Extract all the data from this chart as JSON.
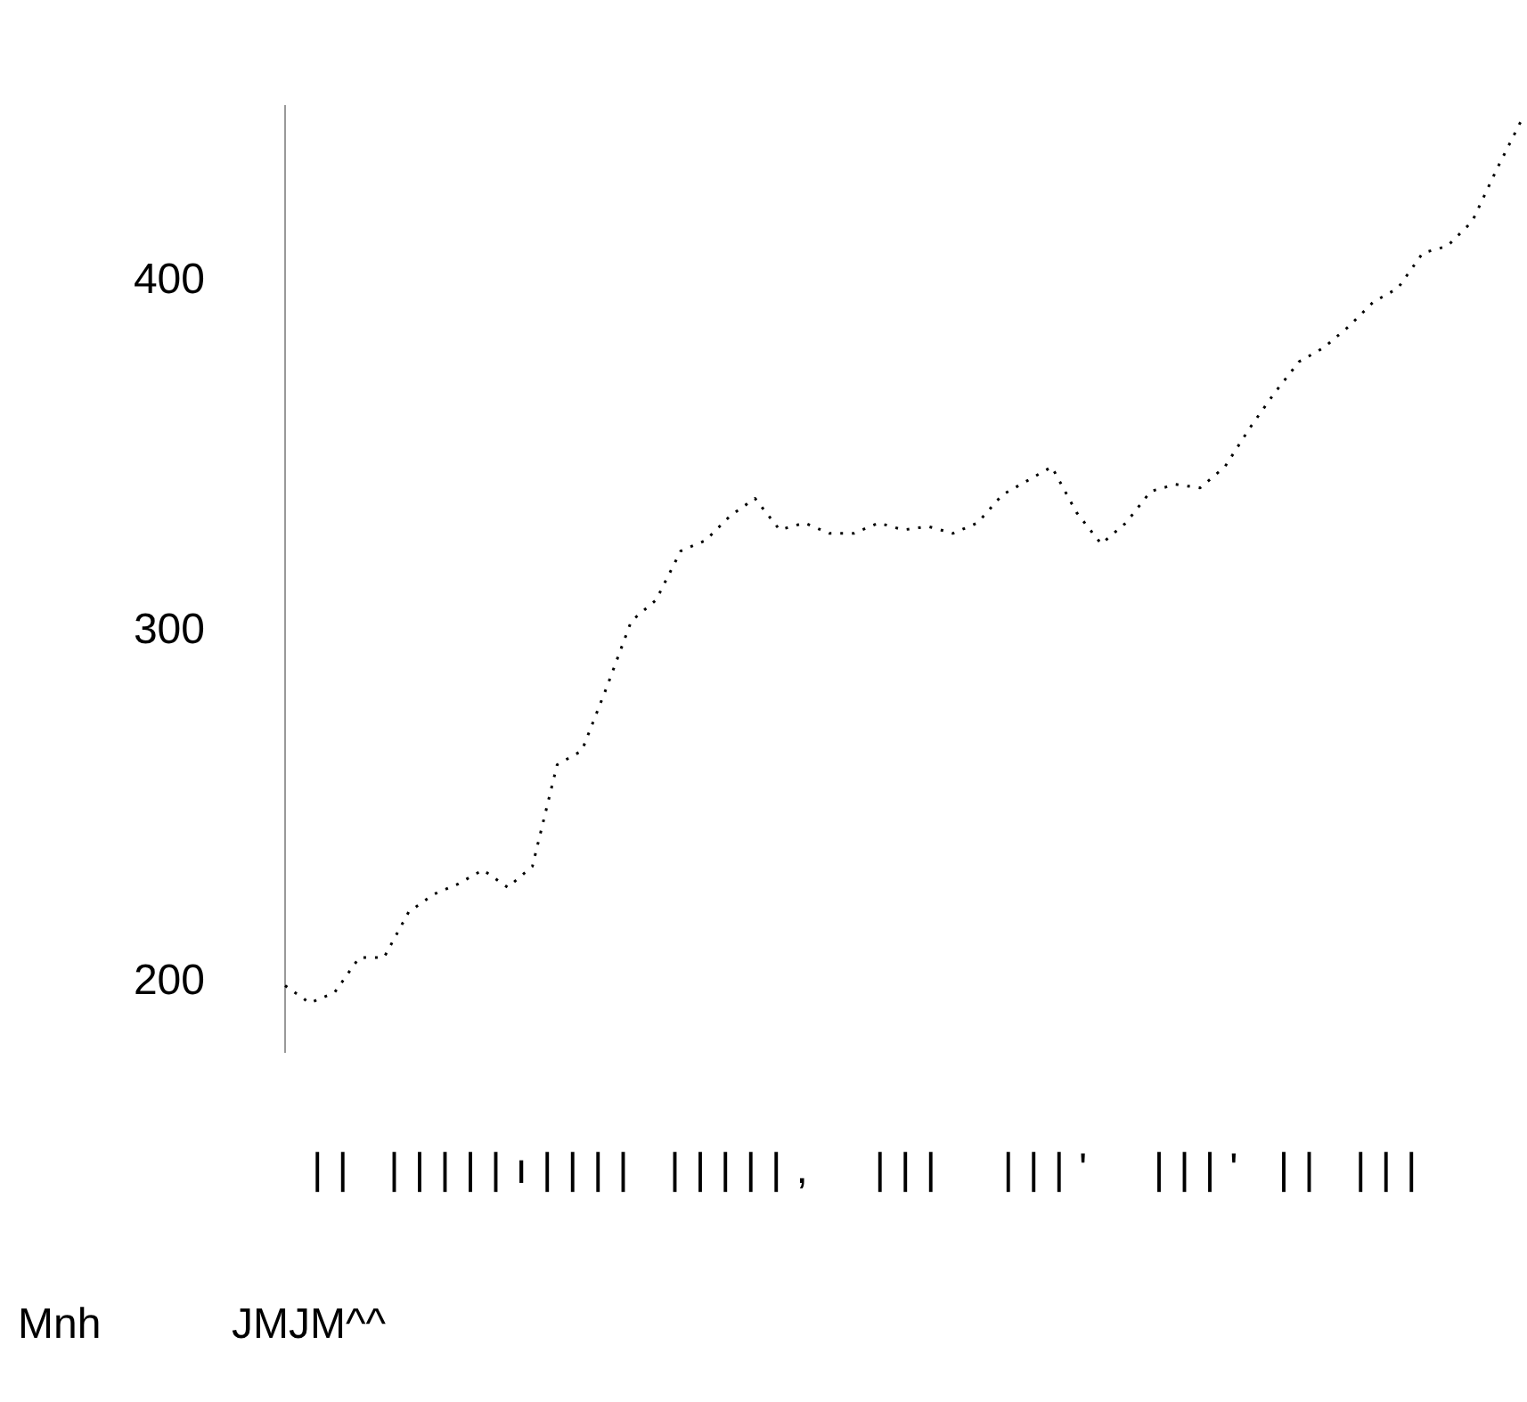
{
  "chart_data": {
    "type": "line",
    "line_style": "dotted",
    "marker": "none",
    "grid": false,
    "legend": false,
    "tick_labels": "y",
    "categories": [
      null,
      null,
      null,
      null,
      null,
      null,
      null,
      null,
      null,
      null,
      null,
      null,
      null,
      null,
      null,
      null,
      null,
      null,
      null,
      null,
      null,
      null,
      null,
      null,
      null,
      null,
      null,
      null,
      null,
      null,
      null,
      null,
      null,
      null,
      null,
      null,
      null,
      null,
      null,
      null,
      null,
      null,
      null,
      null,
      null,
      null,
      null,
      null,
      null,
      null,
      null
    ],
    "series": [
      {
        "color": "#000000",
        "values": [
          199,
          194,
          197,
          207,
          207,
          220,
          225,
          228,
          232,
          227,
          233,
          262,
          266,
          284,
          303,
          309,
          323,
          326,
          333,
          338,
          329,
          331,
          328,
          328,
          331,
          329,
          330,
          328,
          331,
          339,
          343,
          347,
          334,
          325,
          331,
          340,
          342,
          341,
          347,
          358,
          368,
          377,
          381,
          387,
          394,
          398,
          408,
          410,
          417,
          432,
          446
        ]
      }
    ],
    "ylim": [
      180,
      450
    ],
    "yticks": [
      200,
      300,
      400
    ],
    "annotations": [
      "|| |||||ı|||| |||||,  |||  |||'  |||' || |||",
      "Mnh",
      "JMJM^^"
    ]
  }
}
